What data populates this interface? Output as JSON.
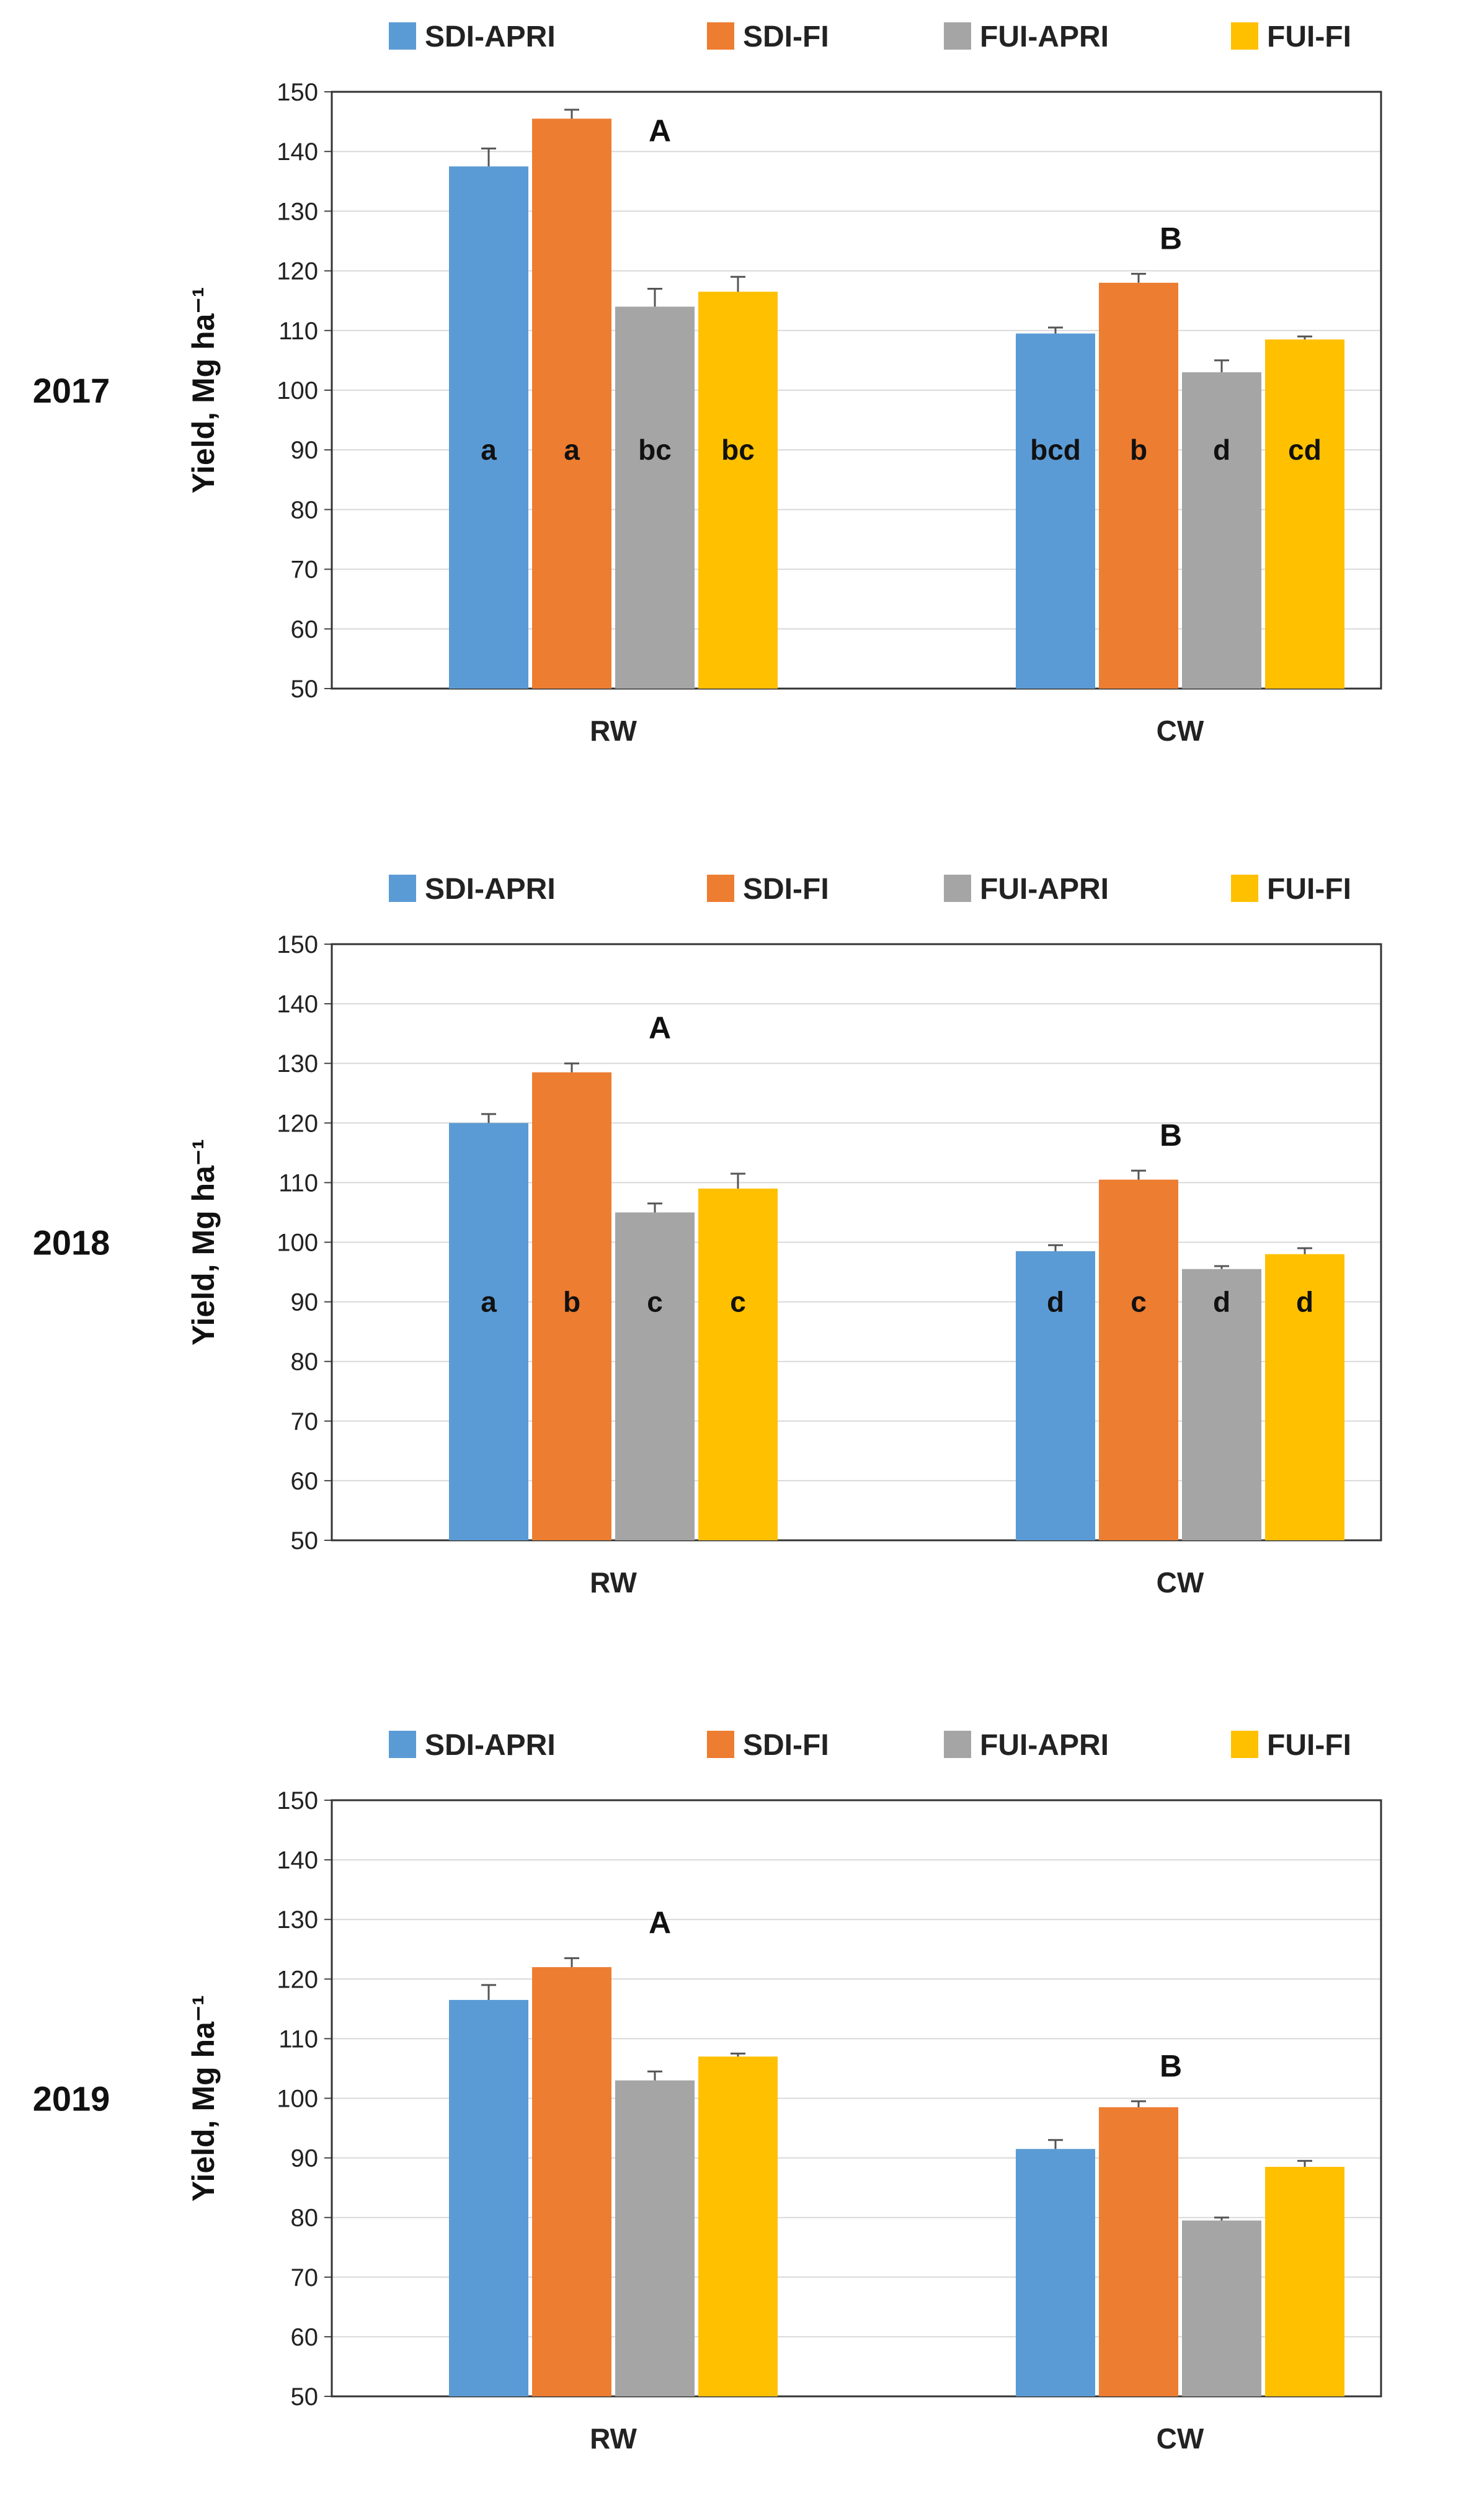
{
  "colors": {
    "SDI-APRI": "#5b9bd5",
    "SDI-FI": "#ed7d31",
    "FUI-APRI": "#a5a5a5",
    "FUI-FI": "#ffc000"
  },
  "chart_data": [
    {
      "type": "bar",
      "year": "2017",
      "ylabel": "Yield, Mg ha⁻¹",
      "ylim": [
        50,
        150
      ],
      "yticks": [
        50,
        60,
        70,
        80,
        90,
        100,
        110,
        120,
        130,
        140,
        150
      ],
      "grid": true,
      "legend": "top",
      "categories": [
        "RW",
        "CW"
      ],
      "group_letters": [
        "A",
        "B"
      ],
      "series": [
        {
          "name": "SDI-APRI",
          "values": [
            137.5,
            109.5
          ],
          "errors": [
            3.0,
            1.0
          ],
          "labels": [
            "a",
            "bcd"
          ]
        },
        {
          "name": "SDI-FI",
          "values": [
            145.5,
            118.0
          ],
          "errors": [
            1.5,
            1.5
          ],
          "labels": [
            "a",
            "b"
          ]
        },
        {
          "name": "FUI-APRI",
          "values": [
            114.0,
            103.0
          ],
          "errors": [
            3.0,
            2.0
          ],
          "labels": [
            "bc",
            "d"
          ]
        },
        {
          "name": "FUI-FI",
          "values": [
            116.5,
            108.5
          ],
          "errors": [
            2.5,
            0.5
          ],
          "labels": [
            "bc",
            "cd"
          ]
        }
      ]
    },
    {
      "type": "bar",
      "year": "2018",
      "ylabel": "Yield, Mg ha⁻¹",
      "ylim": [
        50,
        150
      ],
      "yticks": [
        50,
        60,
        70,
        80,
        90,
        100,
        110,
        120,
        130,
        140,
        150
      ],
      "grid": true,
      "legend": "top",
      "categories": [
        "RW",
        "CW"
      ],
      "group_letters": [
        "A",
        "B"
      ],
      "series": [
        {
          "name": "SDI-APRI",
          "values": [
            120.0,
            98.5
          ],
          "errors": [
            1.5,
            1.0
          ],
          "labels": [
            "a",
            "d"
          ]
        },
        {
          "name": "SDI-FI",
          "values": [
            128.5,
            110.5
          ],
          "errors": [
            1.5,
            1.5
          ],
          "labels": [
            "b",
            "c"
          ]
        },
        {
          "name": "FUI-APRI",
          "values": [
            105.0,
            95.5
          ],
          "errors": [
            1.5,
            0.5
          ],
          "labels": [
            "c",
            "d"
          ]
        },
        {
          "name": "FUI-FI",
          "values": [
            109.0,
            98.0
          ],
          "errors": [
            2.5,
            1.0
          ],
          "labels": [
            "c",
            "d"
          ]
        }
      ]
    },
    {
      "type": "bar",
      "year": "2019",
      "ylabel": "Yield, Mg ha⁻¹",
      "ylim": [
        50,
        150
      ],
      "yticks": [
        50,
        60,
        70,
        80,
        90,
        100,
        110,
        120,
        130,
        140,
        150
      ],
      "grid": true,
      "legend": "top",
      "categories": [
        "RW",
        "CW"
      ],
      "group_letters": [
        "A",
        "B"
      ],
      "series": [
        {
          "name": "SDI-APRI",
          "values": [
            116.5,
            91.5
          ],
          "errors": [
            2.5,
            1.5
          ],
          "labels": [
            "",
            ""
          ]
        },
        {
          "name": "SDI-FI",
          "values": [
            122.0,
            98.5
          ],
          "errors": [
            1.5,
            1.0
          ],
          "labels": [
            "",
            ""
          ]
        },
        {
          "name": "FUI-APRI",
          "values": [
            103.0,
            79.5
          ],
          "errors": [
            1.5,
            0.5
          ],
          "labels": [
            "",
            ""
          ]
        },
        {
          "name": "FUI-FI",
          "values": [
            107.0,
            88.5
          ],
          "errors": [
            0.5,
            1.0
          ],
          "labels": [
            "",
            ""
          ]
        }
      ]
    }
  ]
}
